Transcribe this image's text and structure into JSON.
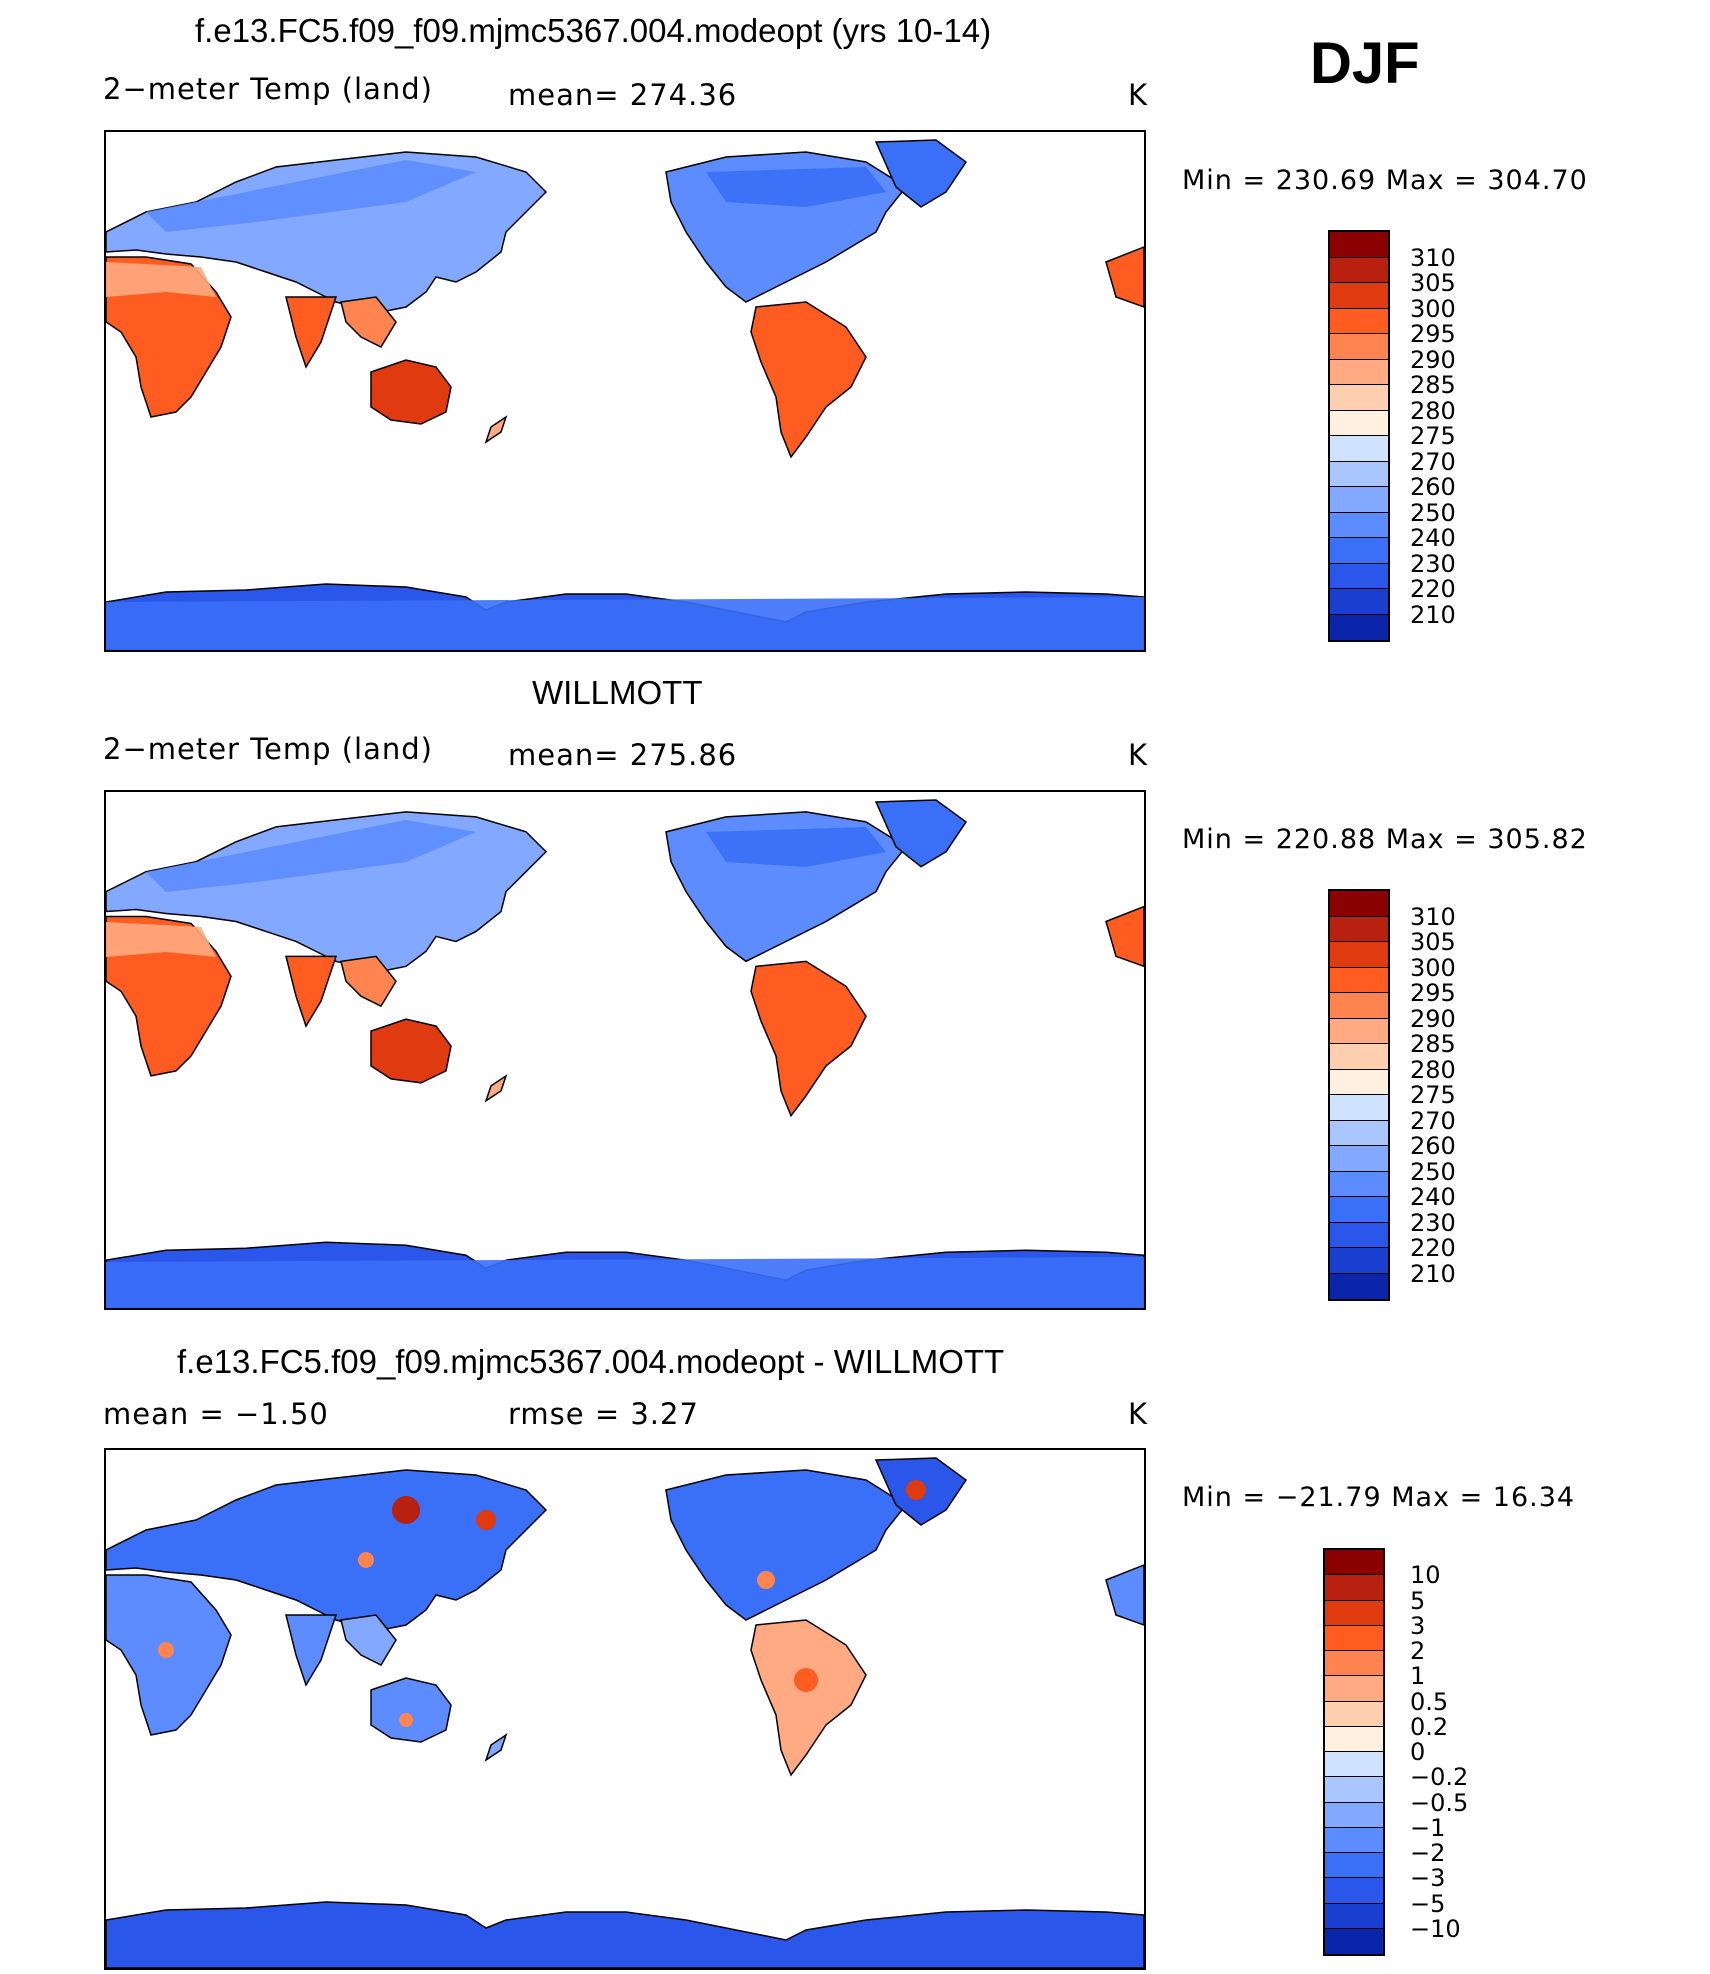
{
  "season": "DJF",
  "colors": {
    "warm_scale": [
      "#00008b",
      "#0a24aa",
      "#1a3ecf",
      "#2b56ea",
      "#3a6ff7",
      "#5c8cff",
      "#82a8ff",
      "#a9c6ff",
      "#cfe2ff",
      "#fff0e0",
      "#ffcfb0",
      "#ffaa82",
      "#ff8450",
      "#ff5c22",
      "#e03a10",
      "#b82010",
      "#8b0000"
    ],
    "diff_scale": [
      "#00008b",
      "#0a24aa",
      "#1a3ecf",
      "#2b56ea",
      "#3a6ff7",
      "#5c8cff",
      "#82a8ff",
      "#a9c6ff",
      "#cfe2ff",
      "#fff0e0",
      "#ffcfb0",
      "#ffaa82",
      "#ff8450",
      "#ff5c22",
      "#e03a10",
      "#b82010",
      "#8b0000"
    ]
  },
  "panels": [
    {
      "title": "f.e13.FC5.f09_f09.mjmc5367.004.modeopt (yrs 10-14)",
      "left_label": "2−meter Temp (land)",
      "center_label": "mean= 274.36",
      "units": "K",
      "minmax": "Min = 230.69 Max = 304.70",
      "colorbar_labels": [
        "310",
        "305",
        "300",
        "295",
        "290",
        "285",
        "280",
        "275",
        "270",
        "260",
        "250",
        "240",
        "230",
        "220",
        "210"
      ]
    },
    {
      "title": "WILLMOTT",
      "left_label": "2−meter Temp (land)",
      "center_label": "mean= 275.86",
      "units": "K",
      "minmax": "Min = 220.88 Max = 305.82",
      "colorbar_labels": [
        "310",
        "305",
        "300",
        "295",
        "290",
        "285",
        "280",
        "275",
        "270",
        "260",
        "250",
        "240",
        "230",
        "220",
        "210"
      ]
    },
    {
      "title": "f.e13.FC5.f09_f09.mjmc5367.004.modeopt - WILLMOTT",
      "left_label": "mean = −1.50",
      "center_label": "rmse = 3.27",
      "units": "K",
      "minmax": "Min = −21.79 Max = 16.34",
      "colorbar_labels": [
        "10",
        "5",
        "3",
        "2",
        "1",
        "0.5",
        "0.2",
        "0",
        "−0.2",
        "−0.5",
        "−1",
        "−2",
        "−3",
        "−5",
        "−10"
      ]
    }
  ]
}
